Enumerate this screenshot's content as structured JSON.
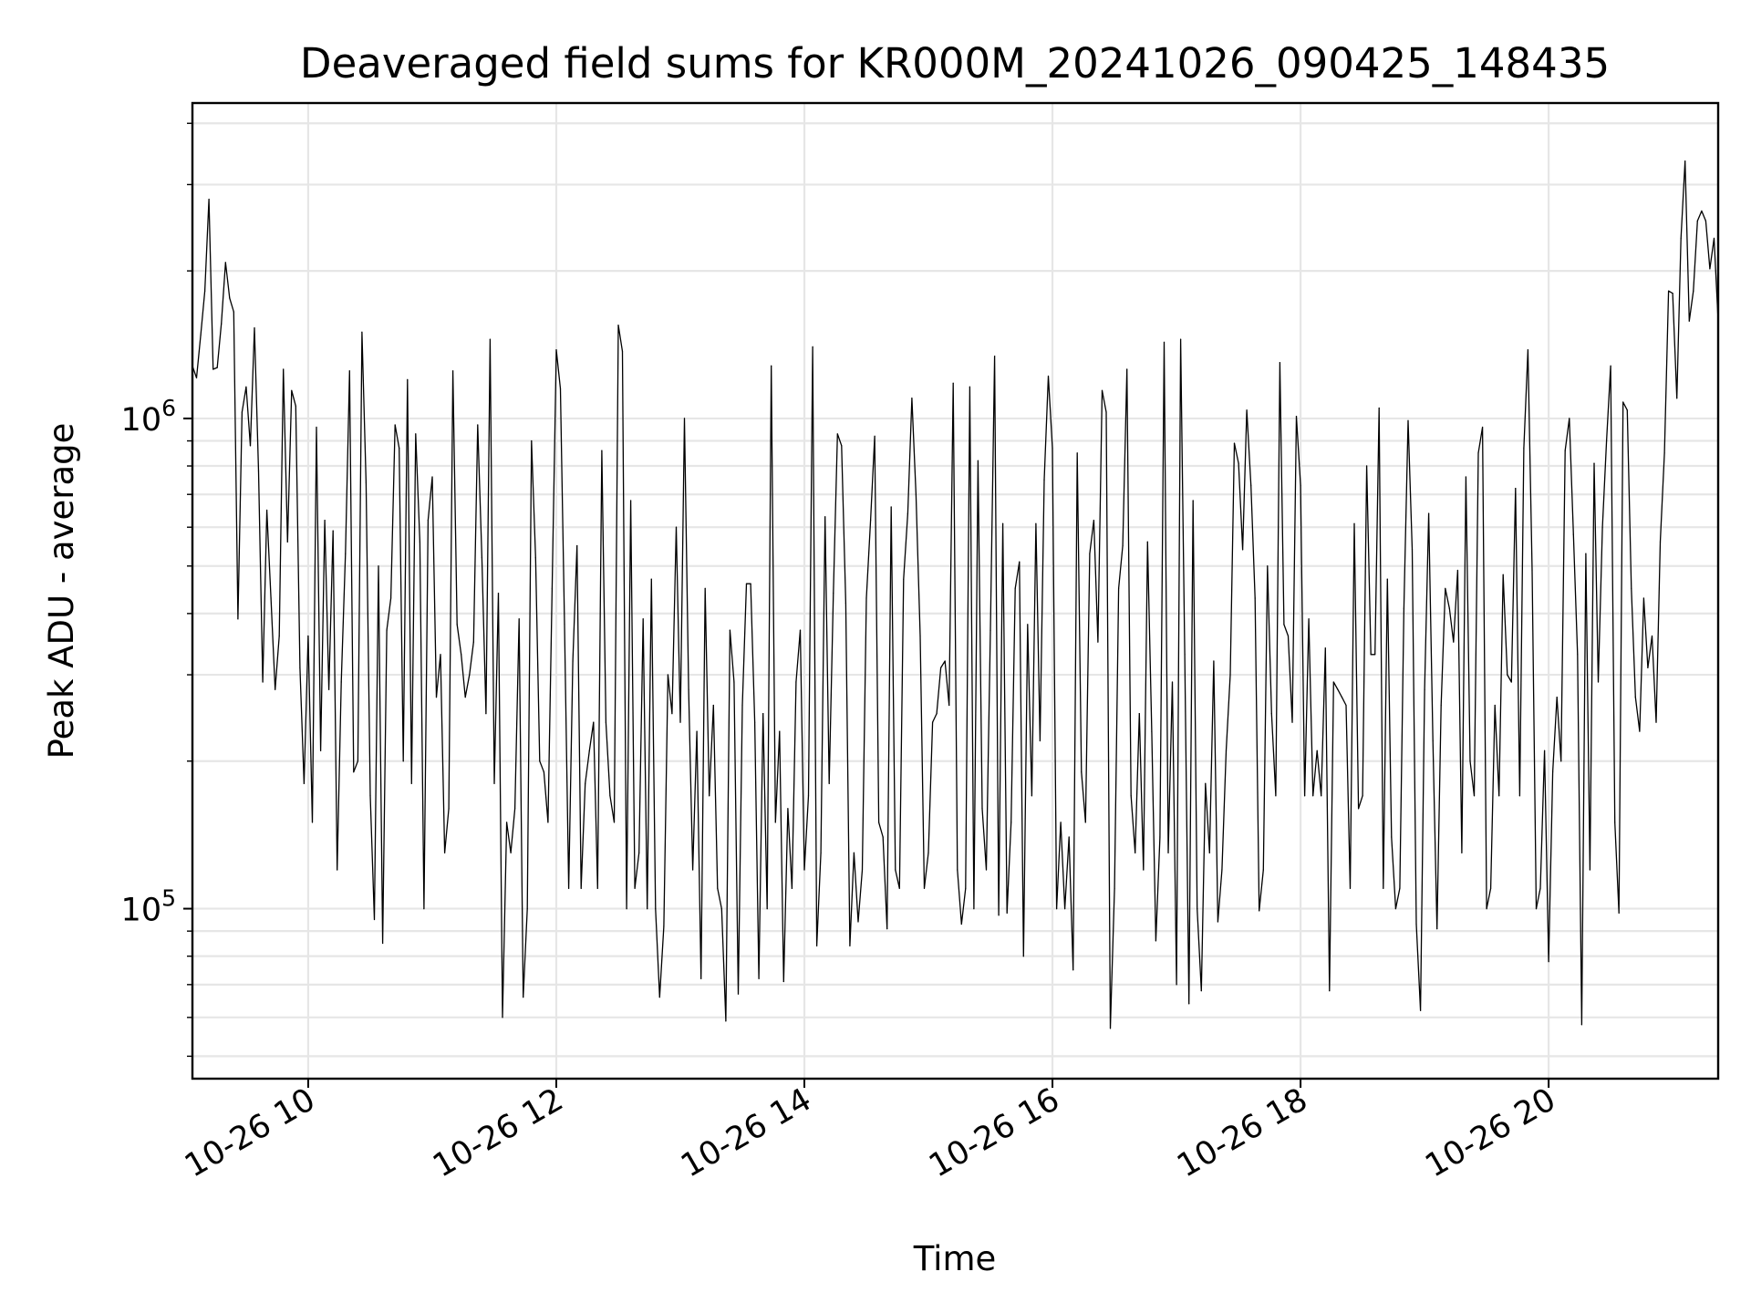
{
  "chart_data": {
    "type": "line",
    "title": "Deaveraged field sums for KR000M_20241026_090425_148435",
    "xlabel": "Time",
    "ylabel": "Peak ADU - average",
    "yscale": "log",
    "xlim": [
      "2024-10-26 09:04",
      "2024-10-26 21:22"
    ],
    "ylim": [
      45000,
      4400000
    ],
    "grid": true,
    "x_tick_labels": [
      "10-26 10",
      "10-26 12",
      "10-26 14",
      "10-26 16",
      "10-26 18",
      "10-26 20"
    ],
    "x_ticks": [
      "2024-10-26 10:00",
      "2024-10-26 12:00",
      "2024-10-26 14:00",
      "2024-10-26 16:00",
      "2024-10-26 18:00",
      "2024-10-26 20:00"
    ],
    "y_tick_labels": [
      {
        "base": "10",
        "exp": "5",
        "value": 100000
      },
      {
        "base": "10",
        "exp": "6",
        "value": 1000000
      }
    ],
    "line_color": "#000000",
    "series": [
      {
        "x_start": "2024-10-26 09:04",
        "x_end": "2024-10-26 21:22",
        "values": [
          1280000,
          1210000,
          1480000,
          1820000,
          2800000,
          1260000,
          1270000,
          1560000,
          2080000,
          1760000,
          1650000,
          390000,
          1030000,
          1160000,
          880000,
          1530000,
          780000,
          290000,
          650000,
          430000,
          280000,
          360000,
          1260000,
          560000,
          1140000,
          1060000,
          310000,
          180000,
          360000,
          150000,
          960000,
          210000,
          620000,
          280000,
          590000,
          120000,
          290000,
          530000,
          1250000,
          190000,
          200000,
          1500000,
          740000,
          170000,
          95000,
          500000,
          85000,
          370000,
          430000,
          970000,
          870000,
          200000,
          1200000,
          180000,
          930000,
          560000,
          100000,
          620000,
          760000,
          270000,
          330000,
          130000,
          160000,
          1250000,
          380000,
          330000,
          270000,
          300000,
          350000,
          970000,
          520000,
          250000,
          1450000,
          180000,
          440000,
          60000,
          150000,
          130000,
          160000,
          390000,
          66000,
          100000,
          900000,
          520000,
          200000,
          190000,
          150000,
          450000,
          1380000,
          1150000,
          380000,
          110000,
          320000,
          550000,
          110000,
          180000,
          210000,
          240000,
          110000,
          860000,
          240000,
          170000,
          150000,
          1550000,
          1370000,
          100000,
          680000,
          110000,
          130000,
          390000,
          100000,
          470000,
          100000,
          66000,
          92000,
          300000,
          250000,
          600000,
          240000,
          1000000,
          280000,
          120000,
          230000,
          72000,
          450000,
          170000,
          260000,
          110000,
          100000,
          59000,
          370000,
          290000,
          67000,
          260000,
          460000,
          460000,
          240000,
          72000,
          250000,
          100000,
          1280000,
          150000,
          230000,
          71000,
          160000,
          110000,
          290000,
          370000,
          120000,
          170000,
          1400000,
          84000,
          130000,
          630000,
          180000,
          440000,
          930000,
          880000,
          420000,
          84000,
          130000,
          94000,
          120000,
          430000,
          620000,
          920000,
          150000,
          140000,
          91000,
          660000,
          120000,
          110000,
          470000,
          640000,
          1100000,
          700000,
          360000,
          110000,
          130000,
          240000,
          250000,
          310000,
          320000,
          260000,
          1180000,
          120000,
          93000,
          110000,
          1160000,
          100000,
          820000,
          160000,
          120000,
          370000,
          1340000,
          97000,
          610000,
          98000,
          150000,
          450000,
          510000,
          80000,
          380000,
          170000,
          610000,
          220000,
          750000,
          1220000,
          870000,
          100000,
          150000,
          100000,
          140000,
          75000,
          850000,
          190000,
          150000,
          530000,
          620000,
          350000,
          1140000,
          1030000,
          57000,
          110000,
          450000,
          550000,
          1260000,
          170000,
          130000,
          250000,
          120000,
          560000,
          230000,
          86000,
          140000,
          1430000,
          130000,
          290000,
          70000,
          1450000,
          330000,
          64000,
          680000,
          100000,
          68000,
          180000,
          130000,
          320000,
          94000,
          120000,
          210000,
          300000,
          890000,
          810000,
          540000,
          1040000,
          730000,
          430000,
          99000,
          120000,
          500000,
          250000,
          170000,
          1300000,
          380000,
          360000,
          240000,
          1010000,
          730000,
          170000,
          390000,
          170000,
          210000,
          170000,
          340000,
          68000,
          290000,
          280000,
          270000,
          260000,
          110000,
          610000,
          160000,
          170000,
          800000,
          330000,
          330000,
          1050000,
          110000,
          470000,
          140000,
          100000,
          110000,
          410000,
          990000,
          540000,
          93000,
          62000,
          280000,
          640000,
          220000,
          91000,
          260000,
          450000,
          410000,
          350000,
          490000,
          130000,
          760000,
          200000,
          170000,
          850000,
          960000,
          100000,
          110000,
          260000,
          170000,
          480000,
          300000,
          290000,
          720000,
          170000,
          870000,
          1380000,
          490000,
          100000,
          110000,
          210000,
          78000,
          190000,
          270000,
          200000,
          860000,
          1000000,
          580000,
          330000,
          58000,
          530000,
          120000,
          810000,
          290000,
          600000,
          900000,
          1280000,
          150000,
          98000,
          1080000,
          1040000,
          450000,
          270000,
          230000,
          430000,
          310000,
          360000,
          240000,
          560000,
          850000,
          1820000,
          1800000,
          1100000,
          2330000,
          3350000,
          1580000,
          1820000,
          2530000,
          2650000,
          2530000,
          2020000,
          2330000,
          1580000
        ]
      }
    ]
  }
}
